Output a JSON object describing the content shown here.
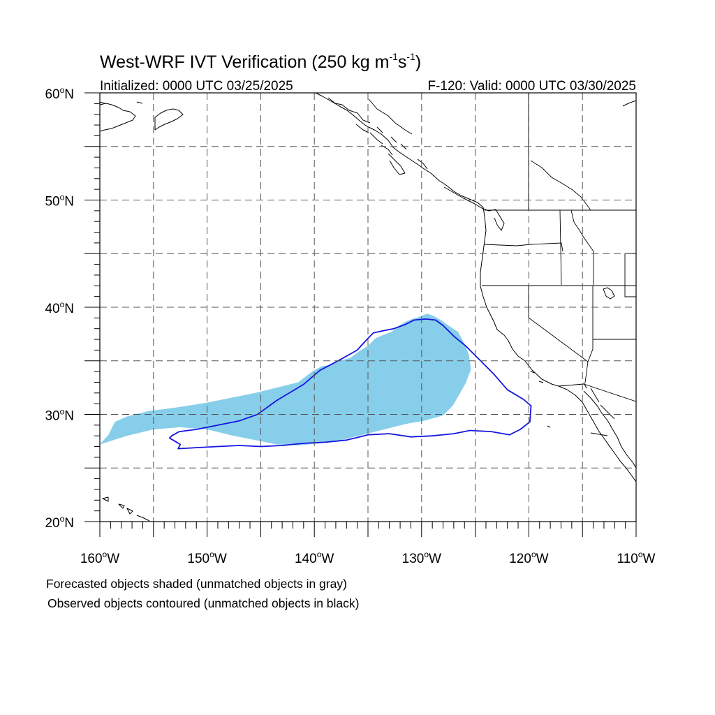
{
  "title": {
    "main": "West-WRF IVT Verification (250 kg m",
    "sup1": "-1",
    "mid": "s",
    "sup2": "-1",
    "close": ")"
  },
  "subtitle_left": "Initialized: 0000 UTC 03/25/2025",
  "subtitle_right": "F-120: Valid: 0000 UTC 03/30/2025",
  "map": {
    "lon_range": [
      -160,
      -110
    ],
    "lat_range": [
      20,
      60
    ],
    "grid_lon_step": 5,
    "grid_lat_step": 5,
    "lat_labels": [
      {
        "num": "60",
        "unit": "N",
        "lat": 60
      },
      {
        "num": "50",
        "unit": "N",
        "lat": 50
      },
      {
        "num": "40",
        "unit": "N",
        "lat": 40
      },
      {
        "num": "30",
        "unit": "N",
        "lat": 30
      },
      {
        "num": "20",
        "unit": "N",
        "lat": 20
      }
    ],
    "lon_labels": [
      {
        "num": "160",
        "unit": "W",
        "lon": -160
      },
      {
        "num": "150",
        "unit": "W",
        "lon": -150
      },
      {
        "num": "140",
        "unit": "W",
        "lon": -140
      },
      {
        "num": "130",
        "unit": "W",
        "lon": -130
      },
      {
        "num": "120",
        "unit": "W",
        "lon": -120
      },
      {
        "num": "110",
        "unit": "W",
        "lon": -110
      }
    ],
    "degree_symbol": "o",
    "forecast_color": "#87CEEB",
    "observed_color": "#1515E0",
    "forecast_object_outline": [
      [
        -160,
        27.2
      ],
      [
        -159.2,
        28.1
      ],
      [
        -158.6,
        29.3
      ],
      [
        -157.5,
        29.8
      ],
      [
        -155.5,
        30.3
      ],
      [
        -152.5,
        30.7
      ],
      [
        -150,
        31.1
      ],
      [
        -147.5,
        31.6
      ],
      [
        -145.5,
        32.0
      ],
      [
        -143.5,
        32.5
      ],
      [
        -141.5,
        33.0
      ],
      [
        -140.2,
        34.0
      ],
      [
        -139.3,
        34.5
      ],
      [
        -138.5,
        34.6
      ],
      [
        -137.6,
        35.0
      ],
      [
        -136.6,
        35.3
      ],
      [
        -135.8,
        35.9
      ],
      [
        -135.0,
        36.4
      ],
      [
        -134.3,
        37.1
      ],
      [
        -133.6,
        37.4
      ],
      [
        -132.8,
        37.7
      ],
      [
        -132.2,
        38.2
      ],
      [
        -131.6,
        38.6
      ],
      [
        -130.9,
        38.9
      ],
      [
        -130.2,
        39.1
      ],
      [
        -129.5,
        39.4
      ],
      [
        -128.9,
        39.2
      ],
      [
        -128.2,
        38.8
      ],
      [
        -127.5,
        38.3
      ],
      [
        -126.6,
        37.7
      ],
      [
        -126.0,
        36.6
      ],
      [
        -125.6,
        35.6
      ],
      [
        -125.4,
        34.2
      ],
      [
        -125.9,
        32.9
      ],
      [
        -126.4,
        32.0
      ],
      [
        -127.1,
        30.8
      ],
      [
        -128.0,
        29.9
      ],
      [
        -129.8,
        29.4
      ],
      [
        -131.5,
        29.1
      ],
      [
        -133.5,
        28.6
      ],
      [
        -135.5,
        28.1
      ],
      [
        -137.5,
        27.6
      ],
      [
        -139.5,
        27.3
      ],
      [
        -141.5,
        27.1
      ],
      [
        -143.5,
        27.2
      ],
      [
        -145.5,
        27.6
      ],
      [
        -147.5,
        28.0
      ],
      [
        -150.0,
        28.6
      ],
      [
        -152.5,
        28.8
      ],
      [
        -155.0,
        28.6
      ],
      [
        -157.5,
        28.0
      ],
      [
        -160,
        27.2
      ]
    ],
    "observed_object_outline": [
      [
        -153.3,
        28.0
      ],
      [
        -152.6,
        28.4
      ],
      [
        -151.0,
        28.6
      ],
      [
        -149.0,
        29.0
      ],
      [
        -147.0,
        29.4
      ],
      [
        -145.3,
        30.0
      ],
      [
        -143.5,
        31.3
      ],
      [
        -141.0,
        32.8
      ],
      [
        -139.5,
        34.1
      ],
      [
        -137.6,
        35.1
      ],
      [
        -136.0,
        36.0
      ],
      [
        -135.1,
        37.0
      ],
      [
        -134.5,
        37.6
      ],
      [
        -133.6,
        37.8
      ],
      [
        -132.6,
        38.0
      ],
      [
        -131.5,
        38.4
      ],
      [
        -130.7,
        38.8
      ],
      [
        -129.6,
        38.9
      ],
      [
        -128.7,
        38.8
      ],
      [
        -128.0,
        38.3
      ],
      [
        -127.0,
        37.3
      ],
      [
        -125.9,
        36.4
      ],
      [
        -124.5,
        35.0
      ],
      [
        -123.3,
        33.8
      ],
      [
        -122.0,
        32.3
      ],
      [
        -120.5,
        31.4
      ],
      [
        -119.8,
        30.8
      ],
      [
        -119.9,
        29.3
      ],
      [
        -120.8,
        28.6
      ],
      [
        -121.8,
        28.1
      ],
      [
        -123.5,
        28.4
      ],
      [
        -125.5,
        28.5
      ],
      [
        -127.0,
        28.2
      ],
      [
        -129.0,
        28.0
      ],
      [
        -131.0,
        27.9
      ],
      [
        -133.0,
        28.2
      ],
      [
        -135.0,
        28.1
      ],
      [
        -137.0,
        27.6
      ],
      [
        -139.0,
        27.4
      ],
      [
        -141.0,
        27.3
      ],
      [
        -143.0,
        27.1
      ],
      [
        -145.0,
        27.0
      ],
      [
        -147.0,
        27.1
      ],
      [
        -149.0,
        27.0
      ],
      [
        -151.0,
        26.9
      ],
      [
        -152.7,
        26.8
      ],
      [
        -152.5,
        27.2
      ],
      [
        -153.5,
        27.8
      ],
      [
        -153.3,
        28.0
      ]
    ]
  },
  "legend": {
    "line1": "Forecasted objects shaded (unmatched objects in gray)",
    "line2": "Observed objects contoured (unmatched objects in black)"
  }
}
